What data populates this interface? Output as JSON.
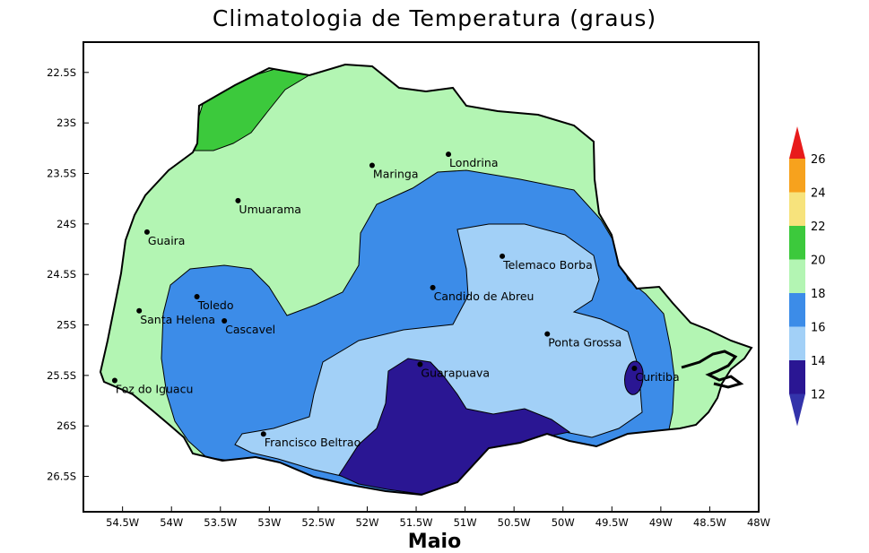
{
  "title": "Climatologia de Temperatura (graus)",
  "subtitle": "Maio",
  "lat_ticks": [
    "22.5S",
    "23S",
    "23.5S",
    "24S",
    "24.5S",
    "25S",
    "25.5S",
    "26S",
    "26.5S"
  ],
  "lon_ticks": [
    "54.5W",
    "54W",
    "53.5W",
    "53W",
    "52.5W",
    "52W",
    "51.5W",
    "51W",
    "50.5W",
    "50W",
    "49.5W",
    "49W",
    "48.5W",
    "48W"
  ],
  "lon_range": [
    -54.9,
    -48.0
  ],
  "lat_range": [
    -26.85,
    -22.2
  ],
  "legend": {
    "levels": [
      "12",
      "14",
      "16",
      "18",
      "20",
      "22",
      "24",
      "26"
    ],
    "colors": [
      "#3333aa",
      "#2a1693",
      "#a2d0f7",
      "#3c8ce8",
      "#b3f5b3",
      "#3cc93c",
      "#f7e37c",
      "#f7a21d",
      "#e81b1b"
    ]
  },
  "cities": [
    {
      "name": "Londrina",
      "lon": -51.17,
      "lat": -23.31
    },
    {
      "name": "Maringa",
      "lon": -51.95,
      "lat": -23.42
    },
    {
      "name": "Umuarama",
      "lon": -53.32,
      "lat": -23.77
    },
    {
      "name": "Guaira",
      "lon": -54.25,
      "lat": -24.08
    },
    {
      "name": "Telemaco Borba",
      "lon": -50.62,
      "lat": -24.32
    },
    {
      "name": "Candido de Abreu",
      "lon": -51.33,
      "lat": -24.63
    },
    {
      "name": "Santa Helena",
      "lon": -54.33,
      "lat": -24.86
    },
    {
      "name": "Toledo",
      "lon": -53.74,
      "lat": -24.72
    },
    {
      "name": "Cascavel",
      "lon": -53.46,
      "lat": -24.96
    },
    {
      "name": "Ponta Grossa",
      "lon": -50.16,
      "lat": -25.09
    },
    {
      "name": "Guarapuava",
      "lon": -51.46,
      "lat": -25.39
    },
    {
      "name": "Curitiba",
      "lon": -49.27,
      "lat": -25.43
    },
    {
      "name": "Foz do Iguacu",
      "lon": -54.58,
      "lat": -25.55
    },
    {
      "name": "Francisco Beltrao",
      "lon": -53.06,
      "lat": -26.08
    }
  ]
}
